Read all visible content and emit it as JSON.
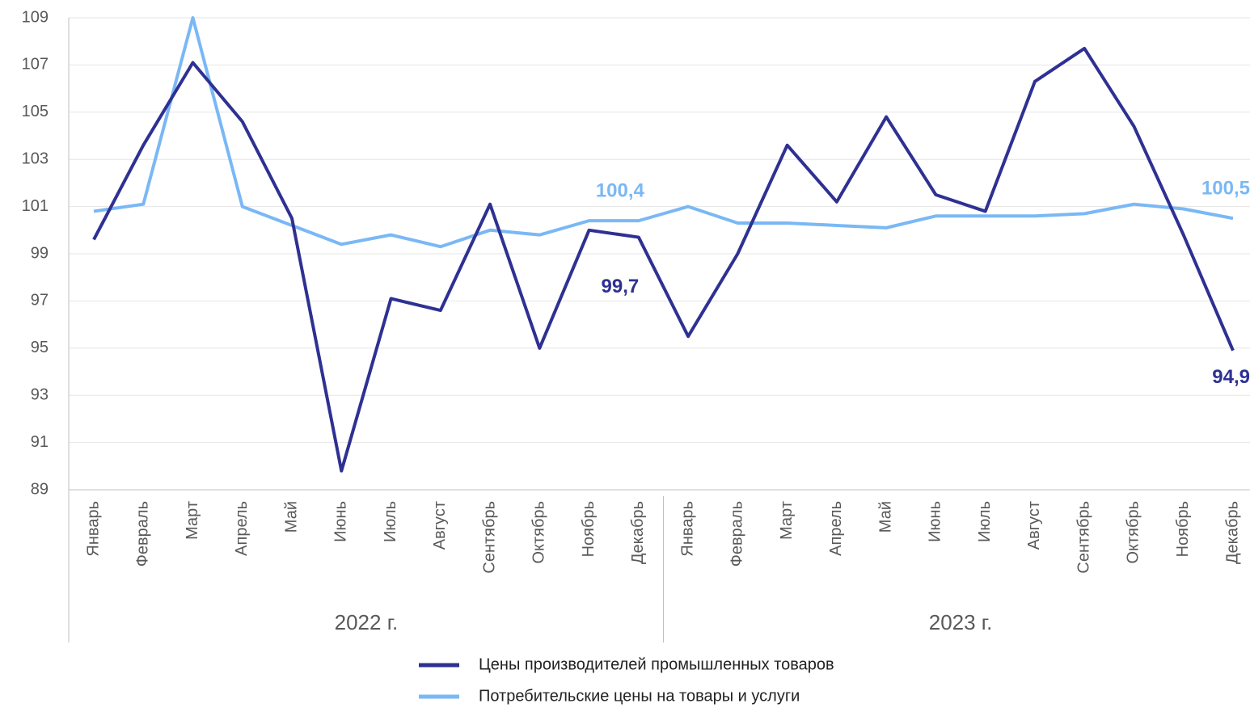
{
  "chart_data": {
    "type": "line",
    "categories": [
      "Январь",
      "Февраль",
      "Март",
      "Апрель",
      "Май",
      "Июнь",
      "Июль",
      "Август",
      "Сентябрь",
      "Октябрь",
      "Ноябрь",
      "Декабрь",
      "Январь",
      "Февраль",
      "Март",
      "Апрель",
      "Май",
      "Июнь",
      "Июль",
      "Август",
      "Сентябрь",
      "Октябрь",
      "Ноябрь",
      "Декабрь"
    ],
    "groups": [
      "2022 г.",
      "2023 г."
    ],
    "series": [
      {
        "name": "Цены производителей промышленных товаров",
        "color": "#2e3192",
        "values": [
          99.6,
          103.6,
          107.1,
          104.6,
          100.5,
          89.8,
          97.1,
          96.6,
          101.1,
          95.0,
          100.0,
          99.7,
          95.5,
          99.0,
          103.6,
          101.2,
          104.8,
          101.5,
          100.8,
          106.3,
          107.7,
          104.4,
          99.8,
          94.9
        ],
        "value_labels": [
          null,
          null,
          null,
          null,
          null,
          null,
          null,
          null,
          null,
          null,
          null,
          "99,7",
          null,
          null,
          null,
          null,
          null,
          null,
          null,
          null,
          null,
          null,
          null,
          "94,9"
        ]
      },
      {
        "name": "Потребительские цены на товары и услуги",
        "color": "#7ab8f5",
        "values": [
          100.8,
          101.1,
          109.0,
          101.0,
          100.2,
          99.4,
          99.8,
          99.3,
          100.0,
          99.8,
          100.4,
          100.4,
          101.0,
          100.3,
          100.3,
          100.2,
          100.1,
          100.6,
          100.6,
          100.6,
          100.7,
          101.1,
          100.9,
          100.5
        ],
        "value_labels": [
          null,
          null,
          null,
          null,
          null,
          null,
          null,
          null,
          null,
          null,
          null,
          "100,4",
          null,
          null,
          null,
          null,
          null,
          null,
          null,
          null,
          null,
          null,
          null,
          "100,5"
        ]
      }
    ],
    "ylim": [
      89,
      109
    ],
    "yticks": [
      89,
      91,
      93,
      95,
      97,
      99,
      101,
      103,
      105,
      107,
      109
    ],
    "grid": true,
    "legend": "bottom"
  }
}
